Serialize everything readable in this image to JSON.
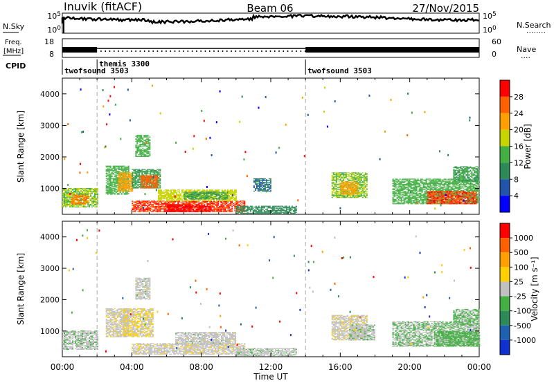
{
  "header": {
    "station": "Inuvik (fitACF)",
    "beam": "Beam 06",
    "date": "27/Nov/2015"
  },
  "left_labels": {
    "nsky": "N.Sky",
    "freq_line1": "Freq.",
    "freq_line2": "[MHz]",
    "cpid": "CPID"
  },
  "right_labels": {
    "nsearch": "N.Search",
    "nave": "Nave",
    "nsearch_dots": "........",
    "nave_dots": "...."
  },
  "nsky_axis": {
    "top": "10^5",
    "bottom": "10^0"
  },
  "nsearch_axis": {
    "top": "10^5",
    "bottom": "10^0"
  },
  "freq_axis": {
    "top": "18",
    "bottom": "8"
  },
  "nave_axis": {
    "top": "60",
    "bottom": "0"
  },
  "cpid": {
    "segments": [
      {
        "label": "twofsound 3503",
        "start_h": 0.0
      },
      {
        "label": "themis 3300",
        "start_h": 2.0
      },
      {
        "label": "twofsound 3503",
        "start_h": 14.0
      }
    ],
    "markers_h": [
      2.0,
      14.0
    ]
  },
  "x_axis": {
    "title": "Time UT",
    "ticks": [
      "00:00",
      "04:00",
      "08:00",
      "12:00",
      "16:00",
      "20:00",
      "00:00"
    ]
  },
  "power_panel": {
    "ylabel": "Slant Range [km]",
    "yticks": [
      "1000",
      "2000",
      "3000",
      "4000"
    ],
    "colorbar_label": "Power [dB]",
    "colorbar_ticks": [
      "4",
      "8",
      "12",
      "16",
      "20",
      "24",
      "28"
    ],
    "colors": [
      "#0000ff",
      "#2255aa",
      "#2e8b57",
      "#44b044",
      "#c8d400",
      "#ffa000",
      "#ff6000",
      "#ff0000"
    ]
  },
  "velocity_panel": {
    "ylabel": "Slant Range [km]",
    "yticks": [
      "1000",
      "2000",
      "3000",
      "4000"
    ],
    "colorbar_label": "Velocity [m s⁻¹]",
    "colorbar_ticks": [
      "1000",
      "500",
      "100",
      "25",
      "-25",
      "-100",
      "-500",
      "-1000"
    ],
    "colors": [
      "#1030d0",
      "#2060b0",
      "#2e8b57",
      "#44b044",
      "#c0c0c0",
      "#ffd000",
      "#ffa000",
      "#ff6000",
      "#ff0000"
    ]
  },
  "chart_data": {
    "type": "heatmap",
    "x_range_hours": [
      0,
      24
    ],
    "y_range_km": [
      180,
      4500
    ],
    "power_range_db": [
      0,
      32
    ],
    "velocity_range_ms": [
      -1500,
      1500
    ],
    "power_regions": [
      {
        "t0": 0.0,
        "t1": 2.0,
        "r0": 400,
        "r1": 1000,
        "db": 16
      },
      {
        "t0": 0.5,
        "t1": 1.5,
        "r0": 500,
        "r1": 800,
        "db": 24
      },
      {
        "t0": 2.5,
        "t1": 3.8,
        "r0": 800,
        "r1": 1700,
        "db": 14
      },
      {
        "t0": 3.2,
        "t1": 4.0,
        "r0": 900,
        "r1": 1500,
        "db": 22
      },
      {
        "t0": 4.0,
        "t1": 5.6,
        "r0": 1000,
        "r1": 1600,
        "db": 12
      },
      {
        "t0": 4.5,
        "t1": 5.5,
        "r0": 1000,
        "r1": 1400,
        "db": 26
      },
      {
        "t0": 4.2,
        "t1": 5.0,
        "r0": 2000,
        "r1": 2700,
        "db": 14
      },
      {
        "t0": 4.0,
        "t1": 10.5,
        "r0": 250,
        "r1": 600,
        "db": 28
      },
      {
        "t0": 5.5,
        "t1": 10.0,
        "r0": 600,
        "r1": 950,
        "db": 18
      },
      {
        "t0": 7.0,
        "t1": 9.5,
        "r0": 650,
        "r1": 900,
        "db": 12
      },
      {
        "t0": 6.0,
        "t1": 8.5,
        "r0": 250,
        "r1": 500,
        "db": 30
      },
      {
        "t0": 10.0,
        "t1": 13.5,
        "r0": 200,
        "r1": 450,
        "db": 10
      },
      {
        "t0": 11.0,
        "t1": 12.0,
        "r0": 900,
        "r1": 1300,
        "db": 8
      },
      {
        "t0": 15.5,
        "t1": 17.5,
        "r0": 700,
        "r1": 1500,
        "db": 16
      },
      {
        "t0": 16.0,
        "t1": 17.0,
        "r0": 800,
        "r1": 1200,
        "db": 22
      },
      {
        "t0": 19.0,
        "t1": 24.0,
        "r0": 500,
        "r1": 1300,
        "db": 14
      },
      {
        "t0": 21.0,
        "t1": 23.8,
        "r0": 500,
        "r1": 900,
        "db": 28
      },
      {
        "t0": 22.5,
        "t1": 24.0,
        "r0": 1200,
        "r1": 1700,
        "db": 12
      }
    ],
    "velocity_regions": [
      {
        "t0": 0.0,
        "t1": 2.0,
        "r0": 400,
        "r1": 1000,
        "v": -60
      },
      {
        "t0": 2.5,
        "t1": 3.8,
        "r0": 800,
        "r1": 1700,
        "v": 60
      },
      {
        "t0": 3.5,
        "t1": 5.2,
        "r0": 800,
        "r1": 1700,
        "v": 150
      },
      {
        "t0": 4.2,
        "t1": 5.0,
        "r0": 2000,
        "r1": 2700,
        "v": 0
      },
      {
        "t0": 4.0,
        "t1": 10.5,
        "r0": 250,
        "r1": 600,
        "v": 50
      },
      {
        "t0": 6.5,
        "t1": 10.0,
        "r0": 550,
        "r1": 950,
        "v": 0
      },
      {
        "t0": 10.0,
        "t1": 13.5,
        "r0": 200,
        "r1": 450,
        "v": -60
      },
      {
        "t0": 15.5,
        "t1": 17.5,
        "r0": 700,
        "r1": 1500,
        "v": 50
      },
      {
        "t0": 16.5,
        "t1": 18.0,
        "r0": 700,
        "r1": 1200,
        "v": -60
      },
      {
        "t0": 19.0,
        "t1": 24.0,
        "r0": 500,
        "r1": 1300,
        "v": -150
      },
      {
        "t0": 21.5,
        "t1": 24.0,
        "r0": 500,
        "r1": 1000,
        "v": -300
      },
      {
        "t0": 22.5,
        "t1": 24.0,
        "r0": 1200,
        "r1": 1700,
        "v": -200
      }
    ]
  }
}
